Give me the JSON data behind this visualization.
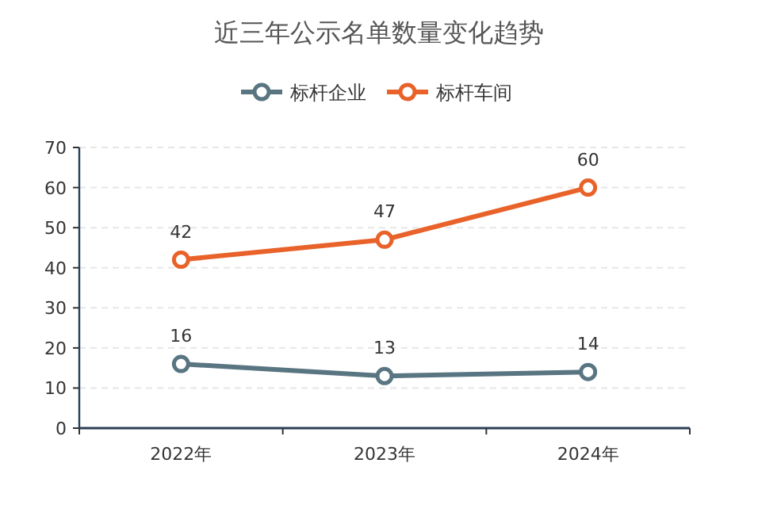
{
  "chart_data": {
    "type": "line",
    "title": "近三年公示名单数量变化趋势",
    "categories": [
      "2022年",
      "2023年",
      "2024年"
    ],
    "series": [
      {
        "name": "标杆企业",
        "color": "#5a7582",
        "values": [
          16,
          13,
          14
        ]
      },
      {
        "name": "标杆车间",
        "color": "#e8622a",
        "values": [
          42,
          47,
          60
        ]
      }
    ],
    "ylim": [
      0,
      70
    ],
    "yticks": [
      0,
      10,
      20,
      30,
      40,
      50,
      60,
      70
    ],
    "grid": "y",
    "legend": "top",
    "marker": "circle",
    "line_style": "solid",
    "data_labels": true
  }
}
